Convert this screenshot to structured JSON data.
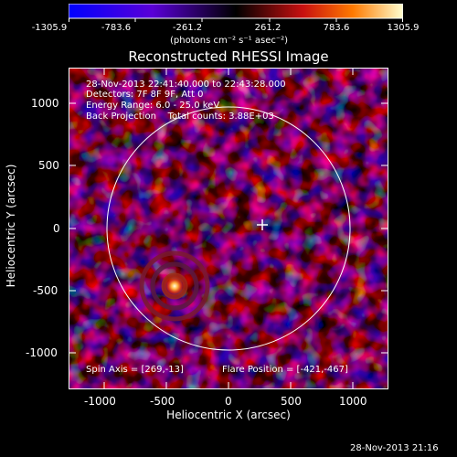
{
  "colorbar": {
    "tick_labels": [
      "-1305.9",
      "-783.6",
      "-261.2",
      "261.2",
      "783.6",
      "1305.9"
    ],
    "units_text": "(photons cm⁻² s⁻¹ asec⁻²)"
  },
  "plot": {
    "title": "Reconstructed RHESSI Image",
    "info_lines": [
      "28-Nov-2013 22:41:40.000 to 22:43:28.000",
      "Detectors: 7F 8F 9F, Att 0",
      "Energy Range: 6.0 - 25.0 keV",
      "Back Projection    Total counts: 3.88E+03"
    ],
    "spin_axis": "Spin Axis = [269,-13]",
    "flare_position": "Flare Position = [-421,-467]",
    "y_ticks": [
      "1000",
      "500",
      "0",
      "-500",
      "-1000"
    ],
    "x_ticks": [
      "-1000",
      "-500",
      "0",
      "500",
      "1000"
    ],
    "y_axis_label": "Heliocentric Y (arcsec)",
    "x_axis_label": "Heliocentric X (arcsec)"
  },
  "footer": {
    "timestamp": "28-Nov-2013 21:16"
  }
}
